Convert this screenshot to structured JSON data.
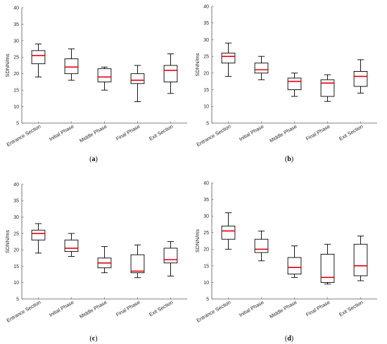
{
  "figure": {
    "box_color": "#000000",
    "median_color": "#e8000b",
    "axis_color": "#555555"
  },
  "chart_data": [
    {
      "type": "box",
      "panel": "a",
      "caption": {
        "open": "(",
        "letter": "a",
        "close": ")"
      },
      "ylabel": "SDNN/ms",
      "ylim": [
        5,
        40
      ],
      "yticks": [
        "5",
        "10",
        "15",
        "20",
        "25",
        "30",
        "35",
        "40"
      ],
      "grid": false,
      "categories": [
        "Entrance Section",
        "Initial Phase",
        "Middle Phase",
        "Final Phase",
        "Exit Section"
      ],
      "boxes": [
        {
          "whisker_low": 19,
          "q1": 23,
          "median": 25.5,
          "q3": 27,
          "whisker_high": 29
        },
        {
          "whisker_low": 18,
          "q1": 20,
          "median": 22,
          "q3": 24.5,
          "whisker_high": 27.5
        },
        {
          "whisker_low": 15,
          "q1": 17.5,
          "median": 19,
          "q3": 21.5,
          "whisker_high": 22
        },
        {
          "whisker_low": 11.5,
          "q1": 17,
          "median": 18,
          "q3": 20,
          "whisker_high": 22.5
        },
        {
          "whisker_low": 14,
          "q1": 17.5,
          "median": 21,
          "q3": 22.5,
          "whisker_high": 26
        }
      ]
    },
    {
      "type": "box",
      "panel": "b",
      "caption": {
        "open": "(",
        "letter": "b",
        "close": ")"
      },
      "ylabel": "SDNN/ms",
      "ylim": [
        5,
        40
      ],
      "yticks": [
        "5",
        "10",
        "15",
        "20",
        "25",
        "30",
        "35",
        "40"
      ],
      "grid": false,
      "categories": [
        "Entrance Section",
        "Initial Phase",
        "Middle Phase",
        "Final Phase",
        "Exit Section"
      ],
      "boxes": [
        {
          "whisker_low": 19,
          "q1": 23,
          "median": 25,
          "q3": 26,
          "whisker_high": 29
        },
        {
          "whisker_low": 18,
          "q1": 20,
          "median": 21,
          "q3": 23,
          "whisker_high": 25
        },
        {
          "whisker_low": 13,
          "q1": 15,
          "median": 17.5,
          "q3": 18.5,
          "whisker_high": 20
        },
        {
          "whisker_low": 11.5,
          "q1": 13,
          "median": 17,
          "q3": 18,
          "whisker_high": 19.5
        },
        {
          "whisker_low": 14,
          "q1": 16,
          "median": 19,
          "q3": 20.5,
          "whisker_high": 24
        }
      ]
    },
    {
      "type": "box",
      "panel": "c",
      "caption": {
        "open": "(",
        "letter": "c",
        "close": ")"
      },
      "ylabel": "SDNN/ms",
      "ylim": [
        5,
        40
      ],
      "yticks": [
        "5",
        "10",
        "15",
        "20",
        "25",
        "30",
        "35",
        "40"
      ],
      "grid": false,
      "categories": [
        "Entrance Section",
        "Initial Phase",
        "Middle Phase",
        "Final Phase",
        "Exit Section"
      ],
      "boxes": [
        {
          "whisker_low": 19,
          "q1": 23,
          "median": 25,
          "q3": 26,
          "whisker_high": 28
        },
        {
          "whisker_low": 18,
          "q1": 19.5,
          "median": 20.5,
          "q3": 23,
          "whisker_high": 25
        },
        {
          "whisker_low": 13,
          "q1": 14.5,
          "median": 16,
          "q3": 17.5,
          "whisker_high": 21
        },
        {
          "whisker_low": 11.5,
          "q1": 13,
          "median": 13.5,
          "q3": 18.5,
          "whisker_high": 21.5
        },
        {
          "whisker_low": 12,
          "q1": 16,
          "median": 17,
          "q3": 20.5,
          "whisker_high": 22.5
        }
      ]
    },
    {
      "type": "box",
      "panel": "d",
      "caption": {
        "open": "(",
        "letter": "d",
        "close": ")"
      },
      "ylabel": "SDNN/ms",
      "ylim": [
        5,
        40
      ],
      "yticks": [
        "5",
        "10",
        "15",
        "20",
        "25",
        "30",
        "35",
        "40"
      ],
      "grid": false,
      "categories": [
        "Entrance Section",
        "Initial Phase",
        "Middle Phase",
        "Final Phase",
        "Exit Section"
      ],
      "boxes": [
        {
          "whisker_low": 20,
          "q1": 23,
          "median": 25.5,
          "q3": 27,
          "whisker_high": 31
        },
        {
          "whisker_low": 16.5,
          "q1": 19,
          "median": 20,
          "q3": 23,
          "whisker_high": 25.5
        },
        {
          "whisker_low": 11.5,
          "q1": 12.5,
          "median": 14.5,
          "q3": 17.5,
          "whisker_high": 21
        },
        {
          "whisker_low": 9.5,
          "q1": 10,
          "median": 11.5,
          "q3": 18.5,
          "whisker_high": 21.5
        },
        {
          "whisker_low": 10.5,
          "q1": 12,
          "median": 15,
          "q3": 21.5,
          "whisker_high": 24
        }
      ]
    }
  ]
}
